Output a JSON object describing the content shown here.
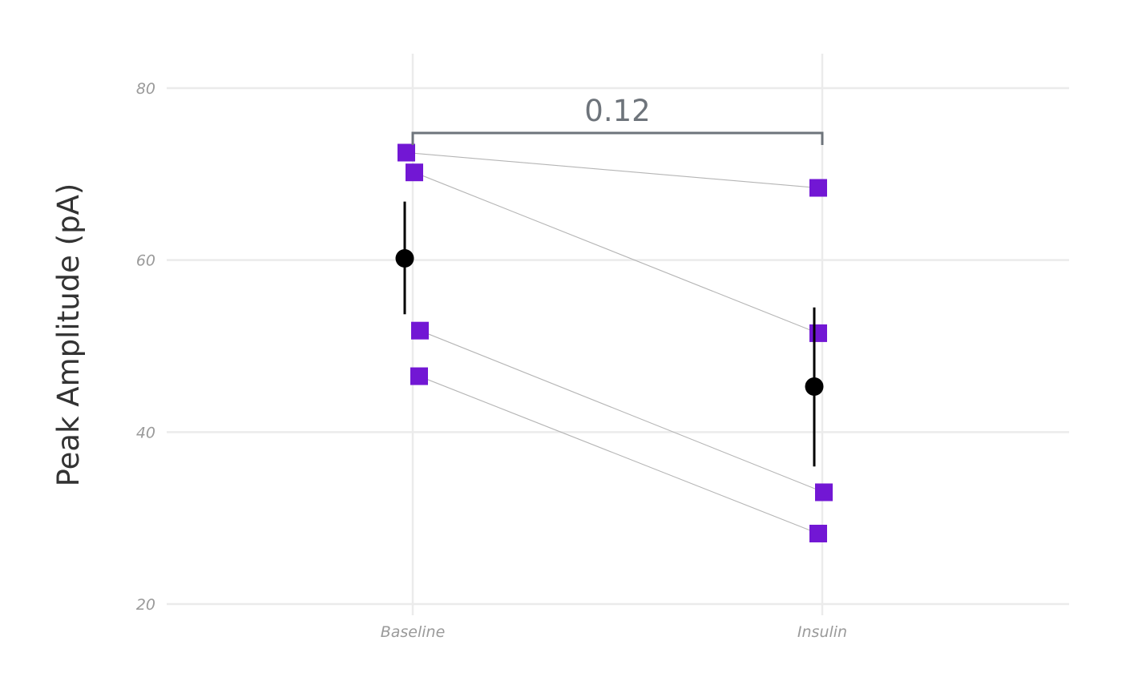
{
  "chart_data": {
    "type": "scatter",
    "ylabel": "Peak Amplitude (pA)",
    "categories": [
      "Baseline",
      "Insulin"
    ],
    "ylim": [
      20,
      84
    ],
    "yticks": [
      20,
      40,
      60,
      80
    ],
    "grid": true,
    "legend": "none",
    "subjects": [
      {
        "Baseline": 72.5,
        "Insulin": 68.4
      },
      {
        "Baseline": 70.2,
        "Insulin": 51.5
      },
      {
        "Baseline": 51.8,
        "Insulin": 33.0
      },
      {
        "Baseline": 46.5,
        "Insulin": 28.2
      }
    ],
    "summary": [
      {
        "category": "Baseline",
        "mean": 60.2,
        "lower": 53.7,
        "upper": 66.8
      },
      {
        "category": "Insulin",
        "mean": 45.3,
        "lower": 36.0,
        "upper": 54.5
      }
    ],
    "comparison": {
      "from": "Baseline",
      "to": "Insulin",
      "label": "0.12"
    },
    "point_color": "#7217d4",
    "summary_color": "#000000"
  }
}
